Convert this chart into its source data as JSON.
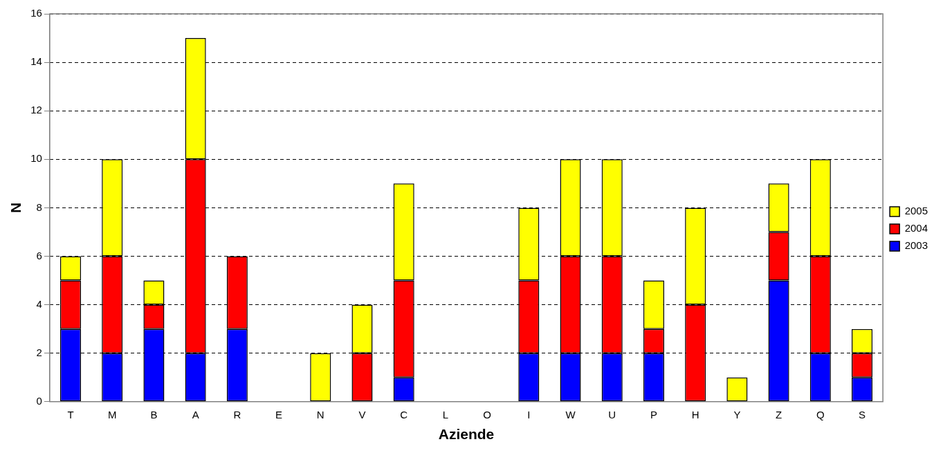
{
  "chart_data": {
    "type": "bar",
    "stacked": true,
    "xlabel": "Aziende",
    "ylabel": "N",
    "categories": [
      "T",
      "M",
      "B",
      "A",
      "R",
      "E",
      "N",
      "V",
      "C",
      "L",
      "O",
      "I",
      "W",
      "U",
      "P",
      "H",
      "Y",
      "Z",
      "Q",
      "S"
    ],
    "series": [
      {
        "name": "2003",
        "color": "#0000ff",
        "values": [
          3,
          2,
          3,
          2,
          3,
          0,
          0,
          0,
          1,
          0,
          0,
          2,
          2,
          2,
          2,
          0,
          0,
          5,
          2,
          1
        ]
      },
      {
        "name": "2004",
        "color": "#ff0000",
        "values": [
          2,
          4,
          1,
          8,
          3,
          0,
          0,
          2,
          4,
          0,
          0,
          3,
          4,
          4,
          1,
          4,
          0,
          2,
          4,
          1
        ]
      },
      {
        "name": "2005",
        "color": "#ffff00",
        "values": [
          1,
          4,
          1,
          5,
          0,
          0,
          2,
          2,
          4,
          0,
          0,
          3,
          4,
          4,
          2,
          4,
          1,
          2,
          4,
          1
        ]
      }
    ],
    "ylim": [
      0,
      16
    ],
    "yticks": [
      0,
      2,
      4,
      6,
      8,
      10,
      12,
      14,
      16
    ],
    "grid": "y",
    "legend": "right"
  }
}
